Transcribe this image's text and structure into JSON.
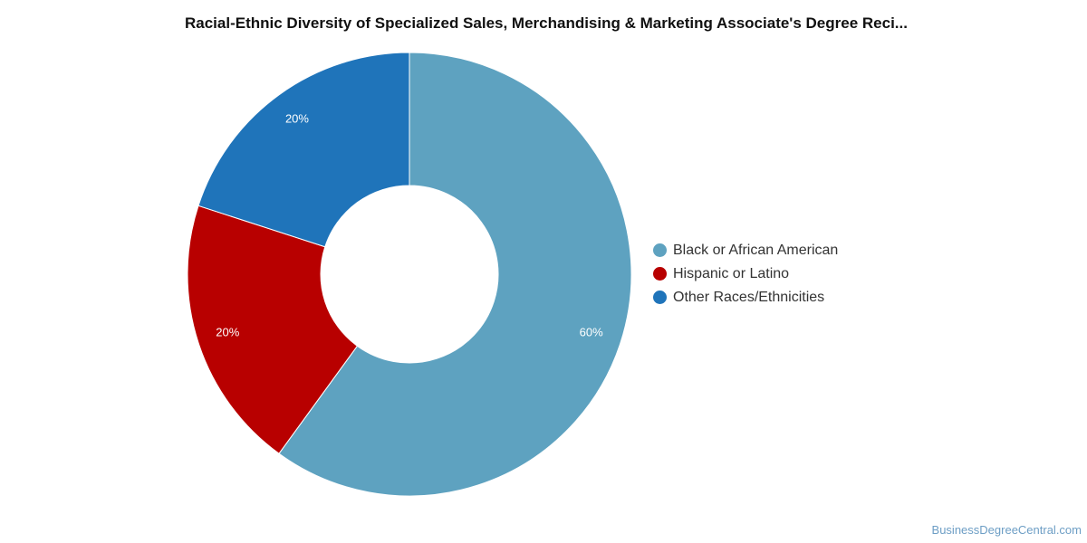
{
  "title": "Racial-Ethnic Diversity of Specialized Sales, Merchandising & Marketing Associate's Degree Reci...",
  "source": "BusinessDegreeCentral.com",
  "chart_data": {
    "type": "pie",
    "donut": true,
    "legend_position": "right",
    "series": [
      {
        "name": "Black or African American",
        "value": 60,
        "label": "60%",
        "color": "#5ea2c0"
      },
      {
        "name": "Hispanic or Latino",
        "value": 20,
        "label": "20%",
        "color": "#b80000"
      },
      {
        "name": "Other Races/Ethnicities",
        "value": 20,
        "label": "20%",
        "color": "#1f74ba"
      }
    ]
  }
}
